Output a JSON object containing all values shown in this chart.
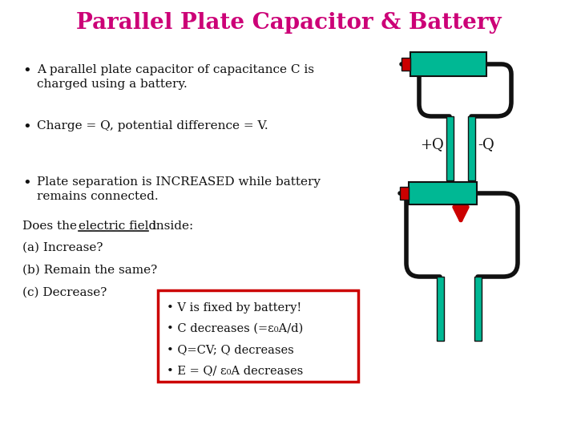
{
  "title": "Parallel Plate Capacitor & Battery",
  "title_color": "#CC0077",
  "title_fontsize": 20,
  "bg_color": "#FFFFFF",
  "bullet_points": [
    "A parallel plate capacitor of capacitance C is\ncharged using a battery.",
    "Charge = Q, potential difference = V.",
    "Plate separation is INCREASED while battery\nremains connected."
  ],
  "question_line": "Does the electric field inside:",
  "underline_word": "electric field",
  "answers": [
    "(a) Increase?",
    "(b) Remain the same?",
    "(c) Decrease?"
  ],
  "answer_box_lines": [
    "• V is fixed by battery!",
    "• C decreases (=ε₀A/d)",
    "• Q=CV; Q decreases",
    "• E = Q/ ε₀A decreases"
  ],
  "teal_color": "#00B894",
  "red_color": "#CC0000",
  "black_color": "#111111",
  "text_color": "#111111",
  "answer_box_border": "#CC0000",
  "wire_lw": 4.0,
  "plate_lw": 1.5
}
